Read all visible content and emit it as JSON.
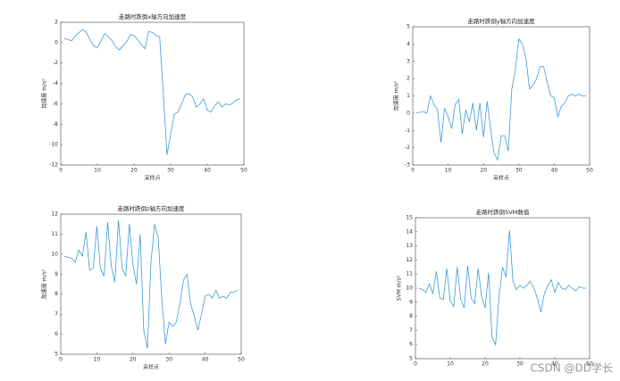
{
  "chart_data": [
    {
      "type": "line",
      "title": "走路时跌倒x轴方向加速度",
      "xlabel": "采样点",
      "ylabel": "加速度 m/s²",
      "color": "#3b9ad9",
      "x": [
        1,
        2,
        3,
        4,
        5,
        6,
        7,
        8,
        9,
        10,
        11,
        12,
        13,
        14,
        15,
        16,
        17,
        18,
        19,
        20,
        21,
        22,
        23,
        24,
        25,
        26,
        27,
        28,
        29,
        30,
        31,
        32,
        33,
        34,
        35,
        36,
        37,
        38,
        39,
        40,
        41,
        42,
        43,
        44,
        45,
        46,
        47,
        48,
        49
      ],
      "values": [
        0.4,
        0.3,
        0.2,
        0.7,
        1.0,
        1.3,
        1.0,
        0.3,
        -0.3,
        -0.5,
        0.2,
        0.9,
        0.6,
        0.2,
        -0.4,
        -0.7,
        -0.3,
        0.1,
        0.8,
        0.7,
        0.3,
        -0.2,
        -0.6,
        1.1,
        1.0,
        0.7,
        0.6,
        -5,
        -11,
        -9,
        -7,
        -6.8,
        -6,
        -5.1,
        -5.0,
        -5.3,
        -6.3,
        -6.0,
        -5.5,
        -6.6,
        -6.8,
        -6.2,
        -5.8,
        -6.3,
        -6.0,
        -6.1,
        -5.9,
        -5.6,
        -5.5
      ],
      "xlim": [
        0,
        50
      ],
      "xticks": [
        0,
        10,
        20,
        30,
        40,
        50
      ],
      "ylim": [
        -12,
        2
      ],
      "yticks": [
        -12,
        -10,
        -8,
        -6,
        -4,
        -2,
        0,
        2
      ]
    },
    {
      "type": "line",
      "title": "走路时跌倒y轴方向加速度",
      "xlabel": "采样点",
      "ylabel": "加速度 m/s²",
      "color": "#3b9ad9",
      "x": [
        1,
        2,
        3,
        4,
        5,
        6,
        7,
        8,
        9,
        10,
        11,
        12,
        13,
        14,
        15,
        16,
        17,
        18,
        19,
        20,
        21,
        22,
        23,
        24,
        25,
        26,
        27,
        28,
        29,
        30,
        31,
        32,
        33,
        34,
        35,
        36,
        37,
        38,
        39,
        40,
        41,
        42,
        43,
        44,
        45,
        46,
        47,
        48,
        49
      ],
      "values": [
        0,
        0.05,
        0.1,
        0,
        1.0,
        0.5,
        0.2,
        -1.7,
        0.3,
        -0.2,
        -0.9,
        0.5,
        0.8,
        -1.2,
        0.2,
        -0.5,
        0.6,
        -1.0,
        0.6,
        -1.4,
        0.7,
        -0.9,
        -2.3,
        -2.7,
        -1.3,
        -1.3,
        -2.2,
        1.4,
        2.5,
        4.3,
        4.0,
        3.2,
        1.4,
        1.6,
        2.0,
        2.7,
        2.7,
        1.8,
        1.0,
        0.9,
        -0.2,
        0.4,
        0.6,
        1.0,
        1.1,
        1.0,
        1.1,
        1.0,
        1.0
      ],
      "xlim": [
        0,
        50
      ],
      "xticks": [
        0,
        10,
        20,
        30,
        40,
        50
      ],
      "ylim": [
        -3,
        5
      ],
      "yticks": [
        -3,
        -2,
        -1,
        0,
        1,
        2,
        3,
        4,
        5
      ]
    },
    {
      "type": "line",
      "title": "走路时跌倒z轴方向加速度",
      "xlabel": "采样点",
      "ylabel": "加速度 m/s²",
      "color": "#3b9ad9",
      "x": [
        1,
        2,
        3,
        4,
        5,
        6,
        7,
        8,
        9,
        10,
        11,
        12,
        13,
        14,
        15,
        16,
        17,
        18,
        19,
        20,
        21,
        22,
        23,
        24,
        25,
        26,
        27,
        28,
        29,
        30,
        31,
        32,
        33,
        34,
        35,
        36,
        37,
        38,
        39,
        40,
        41,
        42,
        43,
        44,
        45,
        46,
        47,
        48,
        49
      ],
      "values": [
        9.9,
        9.85,
        9.8,
        9.6,
        10.2,
        9.9,
        11.1,
        9.2,
        9.3,
        11.4,
        9.3,
        8.9,
        11.6,
        9.4,
        8.6,
        11.7,
        9.3,
        8.9,
        11.5,
        9.5,
        8.5,
        11.0,
        6.2,
        5.3,
        9.6,
        11.5,
        10.8,
        7.8,
        5.5,
        6.6,
        6.4,
        6.6,
        7.5,
        8.7,
        9.0,
        7.5,
        6.9,
        6.2,
        7.0,
        7.9,
        8.0,
        7.8,
        8.2,
        7.8,
        7.9,
        7.8,
        8.1,
        8.1,
        8.2
      ],
      "xlim": [
        0,
        50
      ],
      "xticks": [
        0,
        10,
        20,
        30,
        40,
        50
      ],
      "ylim": [
        5,
        12
      ],
      "yticks": [
        5,
        6,
        7,
        8,
        9,
        10,
        11,
        12
      ]
    },
    {
      "type": "line",
      "title": "走路时跌倒SVM数值",
      "ylabel": "SVM m/s²",
      "color": "#3b9ad9",
      "x": [
        1,
        2,
        3,
        4,
        5,
        6,
        7,
        8,
        9,
        10,
        11,
        12,
        13,
        14,
        15,
        16,
        17,
        18,
        19,
        20,
        21,
        22,
        23,
        24,
        25,
        26,
        27,
        28,
        29,
        30,
        31,
        32,
        33,
        34,
        35,
        36,
        37,
        38,
        39,
        40,
        41,
        42,
        43,
        44,
        45,
        46,
        47,
        48,
        49
      ],
      "values": [
        10,
        9.9,
        9.7,
        10.3,
        9.6,
        11.2,
        9.3,
        9.2,
        11.4,
        9.1,
        8.7,
        11.5,
        9.2,
        8.6,
        11.6,
        9.3,
        8.9,
        11.4,
        9.4,
        8.6,
        11.1,
        6.5,
        6.0,
        9.4,
        11.5,
        10.8,
        14.1,
        10.5,
        9.9,
        10.2,
        10.0,
        10.2,
        10.5,
        10.0,
        9.3,
        8.3,
        9.6,
        10.2,
        10.6,
        9.7,
        10.4,
        10.0,
        9.9,
        10.2,
        10.0,
        9.8,
        10.1,
        10.0,
        10.0
      ],
      "xlim": [
        0,
        50
      ],
      "xticks": [
        0,
        10,
        20,
        30,
        40,
        50
      ],
      "ylim": [
        5,
        15
      ],
      "yticks": [
        5,
        6,
        7,
        8,
        9,
        10,
        11,
        12,
        13,
        14,
        15
      ]
    }
  ],
  "watermark": "CSDN @DD学长"
}
